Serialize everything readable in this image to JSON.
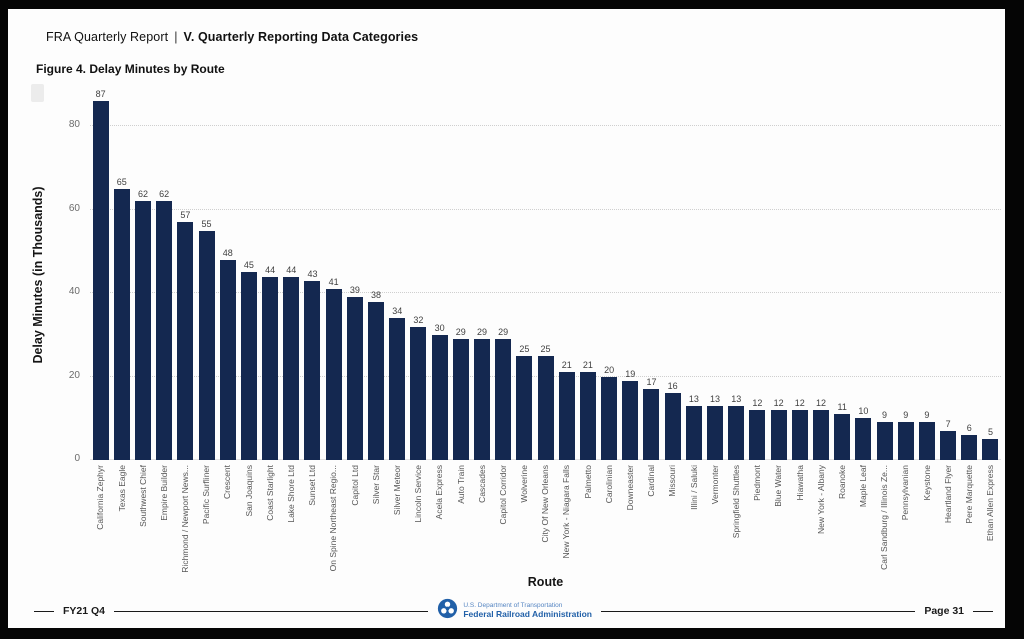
{
  "page": {
    "header": {
      "report_name": "FRA Quarterly Report",
      "separator": "|",
      "section_title": "V. Quarterly Reporting Data Categories"
    },
    "figure_title": "Figure 4. Delay Minutes by Route",
    "footer": {
      "fiscal_period": "FY21 Q4",
      "dept_line": "U.S. Department of Transportation",
      "agency_line": "Federal Railroad Administration",
      "page_number": "Page 31"
    }
  },
  "colors": {
    "bar": "#142850",
    "grid": "#cfcfcf",
    "value_label": "#3f3f3f",
    "tick_label": "#6b6b6b",
    "logo_blue": "#2160a8"
  },
  "chart_data": {
    "type": "bar",
    "title": "Figure 4. Delay Minutes by Route",
    "xlabel": "Route",
    "ylabel": "Delay Minutes (in Thousands)",
    "ylim": [
      0,
      90
    ],
    "yticks": [
      0,
      20,
      40,
      60,
      80
    ],
    "grid": "horizontal-dotted",
    "legend": "none",
    "bar_color": "#142850",
    "categories": [
      "California Zephyr",
      "Texas Eagle",
      "Southwest Chief",
      "Empire Builder",
      "Richmond / Newport News...",
      "Pacific Surfliner",
      "Crescent",
      "San Joaquins",
      "Coast Starlight",
      "Lake Shore Ltd",
      "Sunset Ltd",
      "On Spine Northeast Regio...",
      "Capitol Ltd",
      "Silver Star",
      "Silver Meteor",
      "Lincoln Service",
      "Acela Express",
      "Auto Train",
      "Cascades",
      "Capitol Corridor",
      "Wolverine",
      "City Of New Orleans",
      "New York - Niagara Falls",
      "Palmetto",
      "Carolinian",
      "Downeaster",
      "Cardinal",
      "Missouri",
      "Illini / Saluki",
      "Vermonter",
      "Springfield Shuttles",
      "Piedmont",
      "Blue Water",
      "Hiawatha",
      "New York - Albany",
      "Roanoke",
      "Maple Leaf",
      "Carl Sandburg / Illinois Ze...",
      "Pennsylvanian",
      "Keystone",
      "Heartland Flyer",
      "Pere Marquette",
      "Ethan Allen Express"
    ],
    "values": [
      87,
      65,
      62,
      62,
      57,
      55,
      48,
      45,
      44,
      44,
      43,
      41,
      39,
      38,
      34,
      32,
      30,
      29,
      29,
      29,
      25,
      25,
      21,
      21,
      20,
      19,
      17,
      16,
      13,
      13,
      13,
      12,
      12,
      12,
      12,
      11,
      10,
      9,
      9,
      9,
      7,
      6,
      5
    ]
  }
}
